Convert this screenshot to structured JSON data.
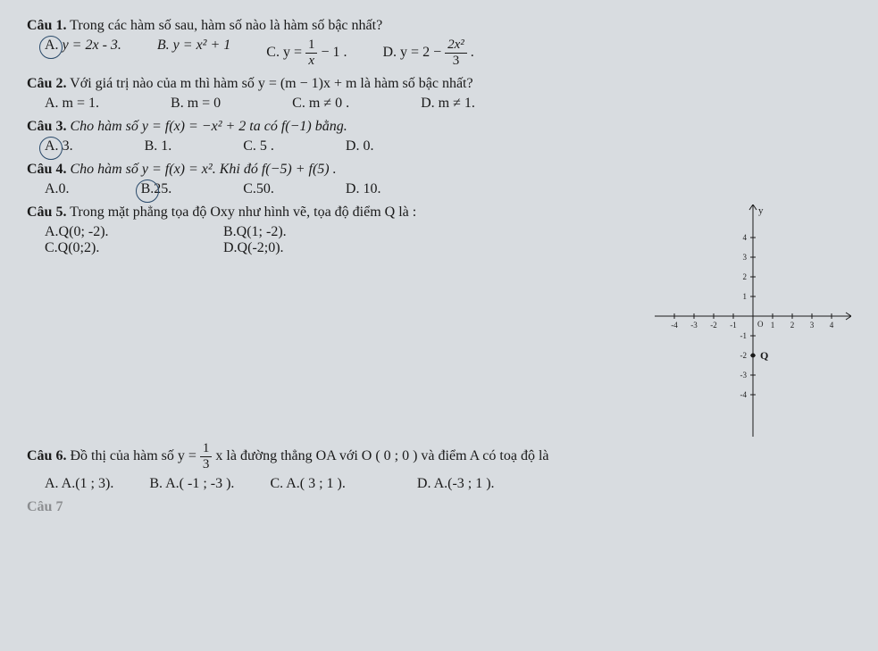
{
  "q1": {
    "label": "Câu 1.",
    "text": "Trong các hàm số sau, hàm số nào là hàm số bậc nhất?",
    "optA": "A.",
    "optA_eq": "y = 2x - 3.",
    "optB": "B. y = x² + 1",
    "optC_prefix": "C. y = ",
    "optC_suffix": " − 1 .",
    "optC_num": "1",
    "optC_den": "x",
    "optD_prefix": "D. y = 2 − ",
    "optD_num": "2x²",
    "optD_den": "3",
    "optD_suffix": " ."
  },
  "q2": {
    "label": "Câu 2.",
    "text": "Với giá trị nào của m thì hàm số y = (m − 1)x + m là hàm số bậc nhất?",
    "optA": "A.  m = 1.",
    "optB": "B. m = 0",
    "optC": "C. m ≠ 0 .",
    "optD": "D. m ≠ 1."
  },
  "q3": {
    "label": "Câu 3.",
    "text": "Cho hàm số  y = f(x) = −x² + 2  ta có  f(−1)  bằng.",
    "optA": "A.",
    "optA_val": "3.",
    "optB": "B. 1.",
    "optC": "C. 5 .",
    "optD": "D. 0."
  },
  "q4": {
    "label": "Câu 4.",
    "text": "Cho hàm số  y = f(x) = x².  Khi đó  f(−5) + f(5) .",
    "optA": "A.0.",
    "optB": "B.",
    "optB_val": "25.",
    "optC": "C.50.",
    "optD": "D. 10."
  },
  "q5": {
    "label": "Câu 5.",
    "text": "Trong mặt phẳng tọa độ Oxy như hình vẽ, tọa độ điểm Q là :",
    "optA": "A.Q(0; -2).",
    "optB": "B.Q(1; -2).",
    "optC": "C.Q(0;2).",
    "optD": "D.Q(-2;0)."
  },
  "q6": {
    "label": "Câu 6.",
    "text_pre": "Đồ thị của hàm số  y = ",
    "frac_num": "1",
    "frac_den": "3",
    "text_post": " x là  đường thẳng OA  với O ( 0 ; 0 ) và điểm A có toạ độ là",
    "optA": "A.  A.(1 ; 3).",
    "optB": "B. A.( -1 ; -3 ).",
    "optC": "C. A.( 3 ; 1 ).",
    "optD": "D. A.(-3 ; 1 )."
  },
  "chart": {
    "x_min": -4,
    "x_max": 4,
    "y_min": -4,
    "y_max": 4,
    "x_ticks": [
      -4,
      -3,
      -2,
      -1,
      1,
      2,
      3,
      4
    ],
    "y_ticks": [
      -4,
      -3,
      -2,
      -1,
      1,
      2,
      3,
      4
    ],
    "axis_color": "#1a1a1a",
    "tick_color": "#1a1a1a",
    "label_color": "#1a1a1a",
    "point_label": "Q",
    "point_x": 0,
    "point_y": -2,
    "y_axis_label": "y",
    "origin_label": "O",
    "tick_fontsize": 9,
    "tick_step": 1,
    "background": "#d8dce0"
  },
  "footer": "Câu 7"
}
